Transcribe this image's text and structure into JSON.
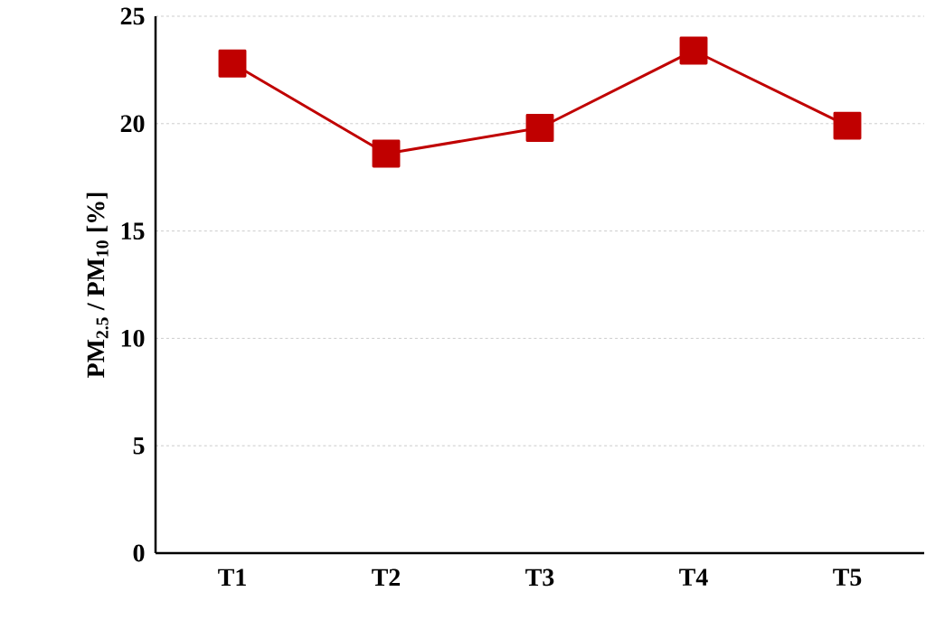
{
  "chart_data": {
    "type": "line",
    "ylabel": "PM$_{2.5}$ / PM$_{10}$ [%]",
    "categories": [
      "T1",
      "T2",
      "T3",
      "T4",
      "T5"
    ],
    "series": [
      {
        "color": "#c00000",
        "values": [
          22.8,
          18.6,
          19.8,
          23.4,
          19.9
        ]
      }
    ],
    "ylim": [
      0,
      25
    ],
    "yticks": [
      0,
      5,
      10,
      15,
      20,
      25
    ],
    "grid": "y",
    "marker": "square",
    "line_style": "solid"
  }
}
